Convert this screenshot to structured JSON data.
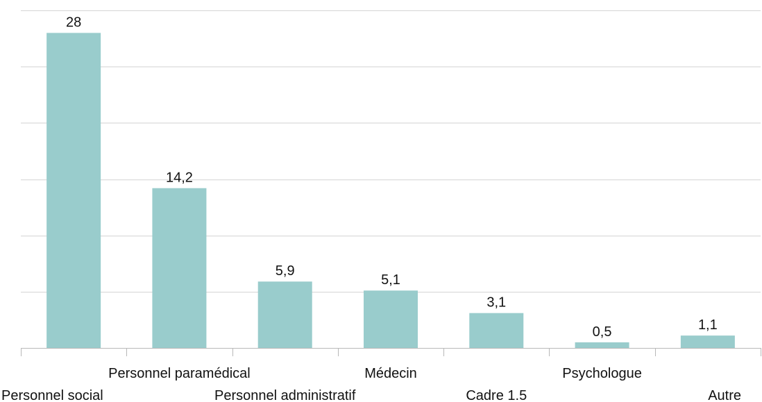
{
  "chart_data": {
    "type": "bar",
    "categories": [
      "Personnel social",
      "Personnel paramédical",
      "Personnel administratif",
      "Médecin",
      "Cadre 1.5",
      "Psychologue",
      "Autre"
    ],
    "values": [
      28,
      14.2,
      5.9,
      5.1,
      3.1,
      0.5,
      1.1
    ],
    "value_labels": [
      "28",
      "14,2",
      "5,9",
      "5,1",
      "3,1",
      "0,5",
      "1,1"
    ],
    "title": "",
    "xlabel": "",
    "ylabel": "",
    "ylim": [
      0,
      30
    ],
    "ytick_step": 5,
    "grid": true,
    "bar_color": "#99cccc"
  }
}
